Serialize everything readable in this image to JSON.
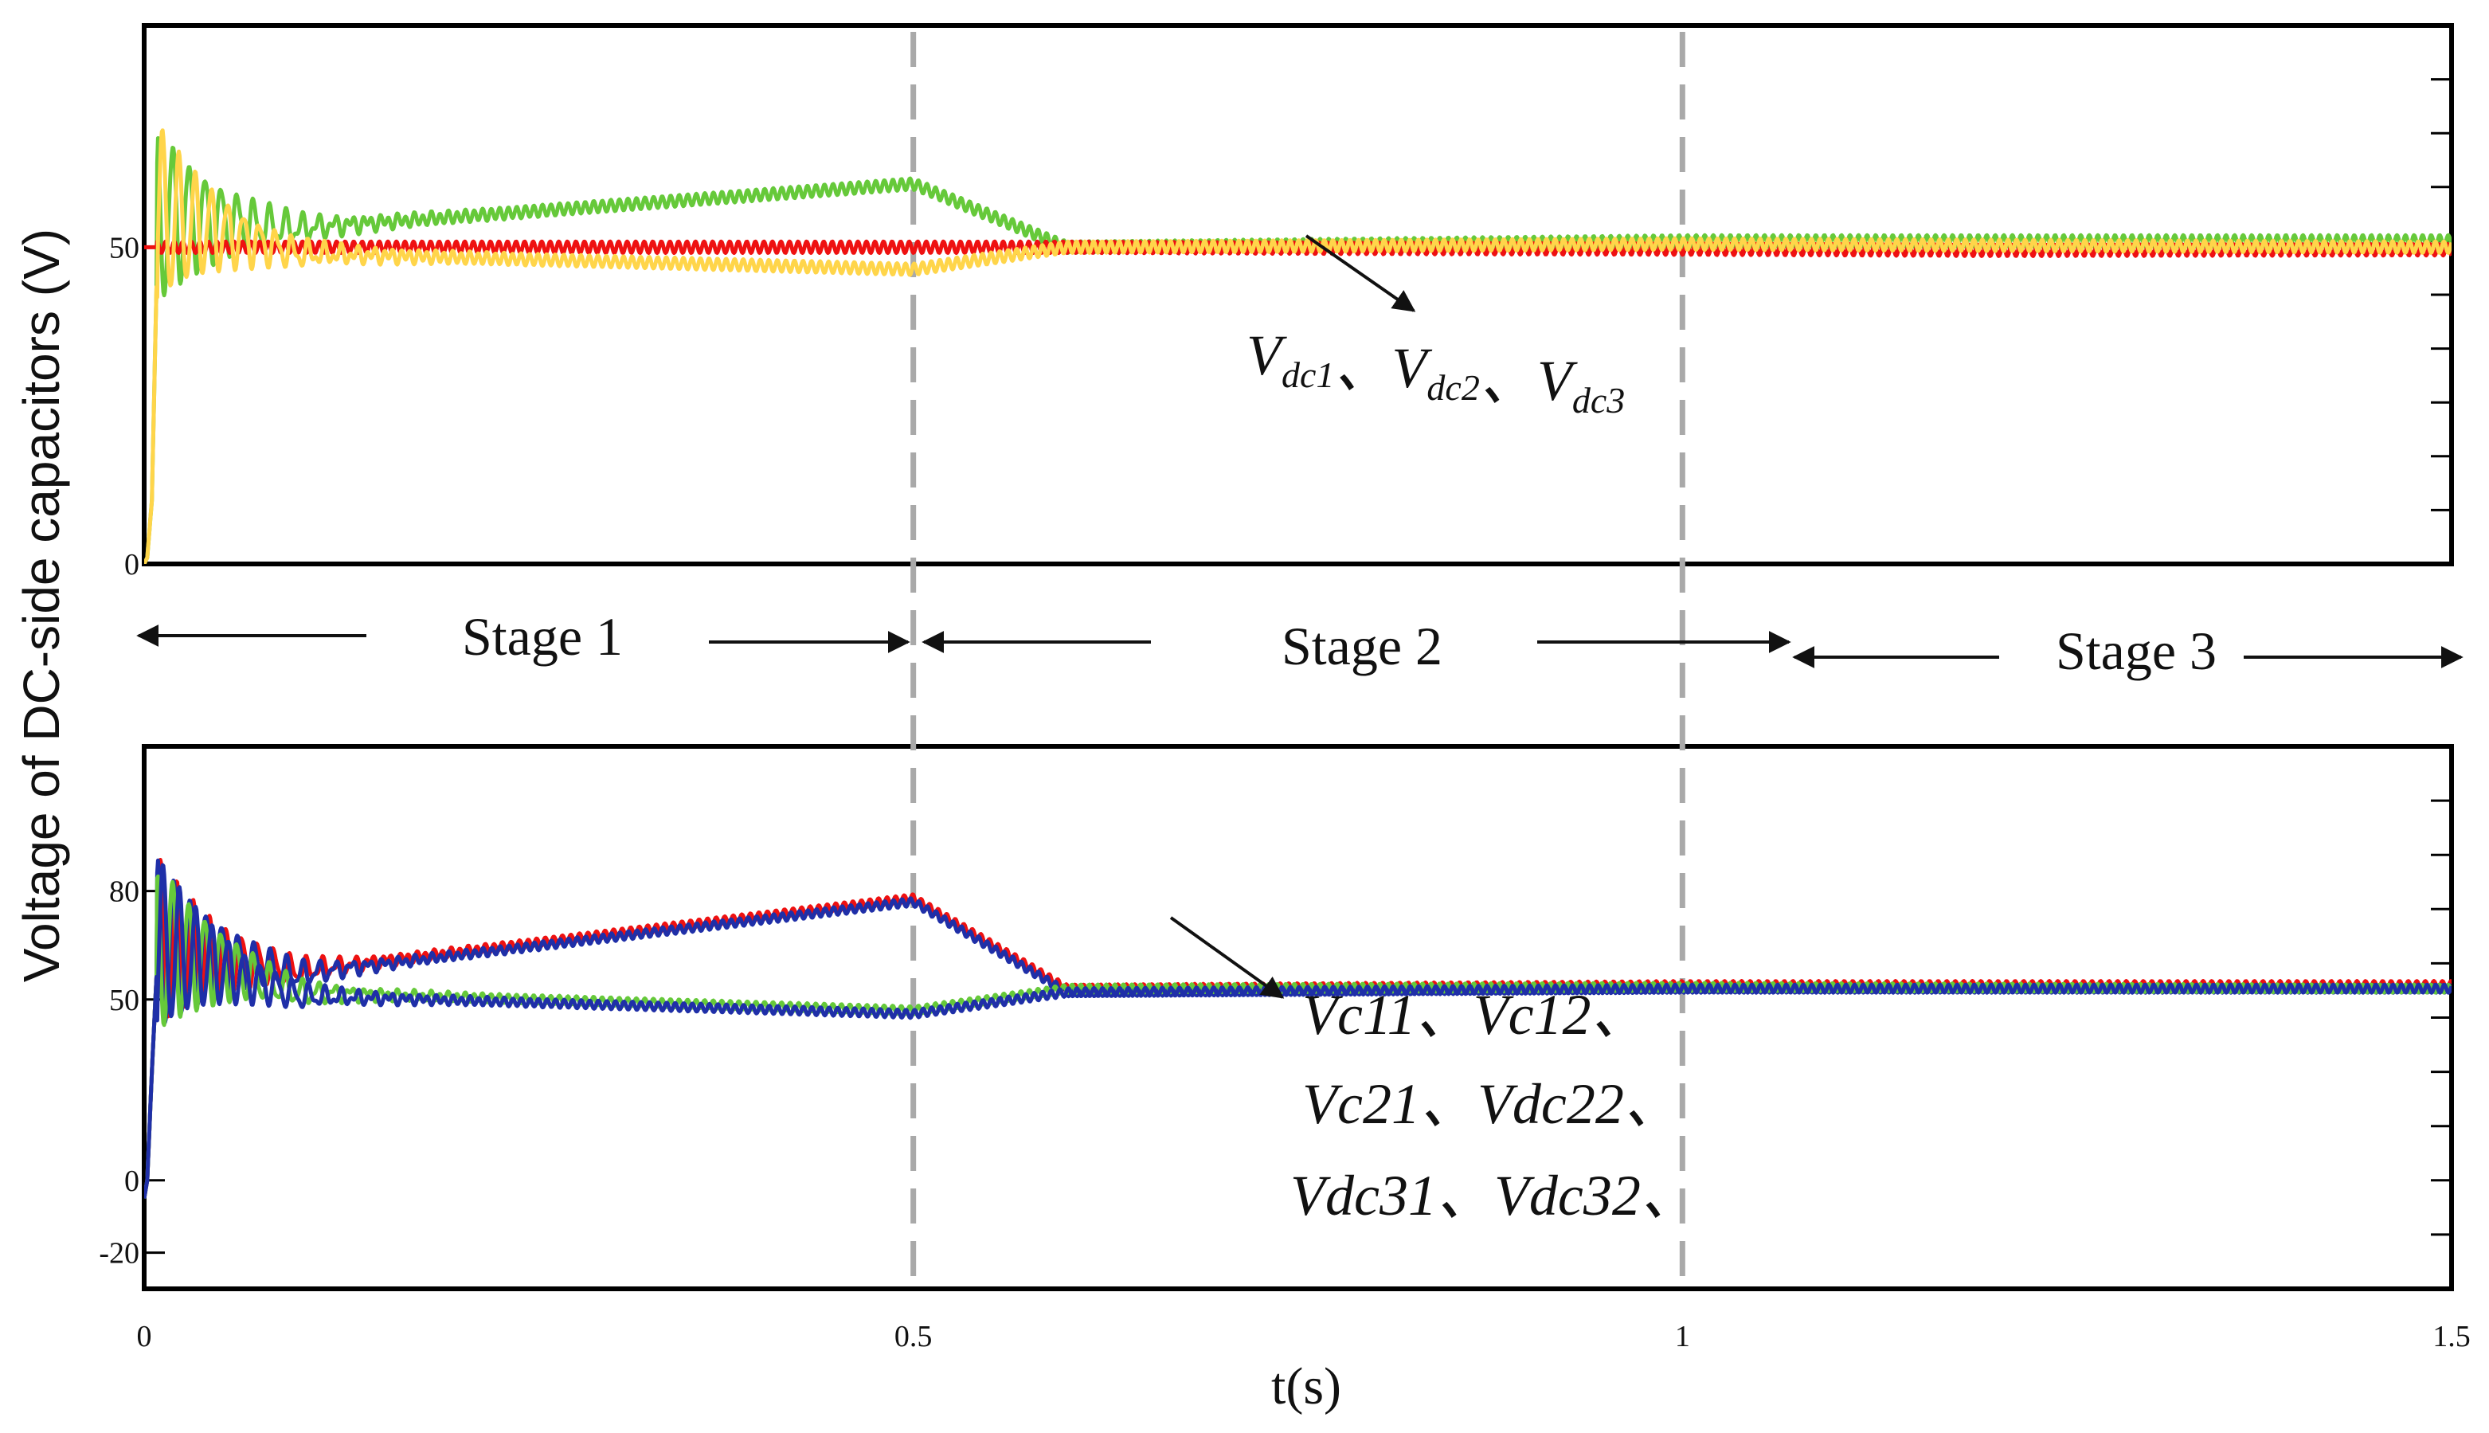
{
  "chart_data": {
    "type": "line",
    "ylabel": "Voltage of DC-side capacitors (V)",
    "xlabel": "t(s)",
    "x_ticks": [
      "0",
      "0.5",
      "1",
      "1.5"
    ],
    "xlim": [
      0,
      1.5
    ],
    "stage_boundaries": [
      0.5,
      1.0
    ],
    "stages": [
      "Stage 1",
      "Stage 2",
      "Stage 3"
    ],
    "colors": {
      "green": "#66c93a",
      "yellow": "#ffd54a",
      "red": "#ee1111",
      "blue": "#1f2fa8",
      "dashed": "#a9a9a9",
      "text": "#111111"
    },
    "panels": [
      {
        "id": "top",
        "ylim": [
          0,
          85
        ],
        "y_ticks": [
          "0",
          "50"
        ],
        "annotation": {
          "lines": [
            [
              {
                "base": "V",
                "sub": "dc1"
              },
              {
                "sep": "、"
              },
              {
                "base": "V",
                "sub": "dc2"
              },
              {
                "sep": "、"
              },
              {
                "base": "V",
                "sub": "dc3"
              }
            ]
          ]
        },
        "series": [
          {
            "name": "Vdc1",
            "color": "green",
            "x": [
              0,
              0.002,
              0.005,
              0.009,
              0.1,
              0.5,
              0.6,
              1.0,
              1.5
            ],
            "y": [
              0,
              1,
              10,
              55,
              53,
              60,
              50,
              51,
              51
            ]
          },
          {
            "name": "Vdc2",
            "color": "red",
            "x": [
              0.6,
              0.8,
              1.0,
              1.2,
              1.5
            ],
            "y": [
              50,
              49.8,
              49.7,
              49.5,
              49.6
            ]
          },
          {
            "name": "Vdc3",
            "color": "yellow",
            "x": [
              0,
              0.002,
              0.005,
              0.009,
              0.1,
              0.5,
              0.6,
              1.0,
              1.5
            ],
            "y": [
              0,
              1,
              10,
              55,
              49,
              46.5,
              50,
              50.5,
              50
            ]
          }
        ]
      },
      {
        "id": "bottom",
        "ylim": [
          -30,
          120
        ],
        "y_ticks": [
          "-20",
          "0",
          "50",
          "80"
        ],
        "annotation": {
          "lines": [
            "Vc11、Vc12、",
            "Vc21、Vdc22、",
            "Vdc31、Vdc32、"
          ]
        },
        "series": [
          {
            "name": "Vc11",
            "color": "red",
            "x": [
              0,
              0.002,
              0.005,
              0.009,
              0.1,
              0.5,
              0.6,
              1.0,
              1.5
            ],
            "y": [
              -5,
              0,
              30,
              65,
              58,
              78,
              53,
              54,
              54
            ]
          },
          {
            "name": "Vc21",
            "color": "blue",
            "x": [
              0,
              0.002,
              0.005,
              0.009,
              0.1,
              0.5,
              0.6,
              1.0,
              1.5
            ],
            "y": [
              -5,
              0,
              30,
              65,
              57,
              77,
              52,
              53,
              53
            ]
          },
          {
            "name": "Vc12",
            "color": "green",
            "x": [
              0,
              0.002,
              0.005,
              0.009,
              0.1,
              0.5,
              0.6,
              1.0,
              1.5
            ],
            "y": [
              -5,
              0,
              30,
              65,
              52,
              47,
              53,
              53.5,
              53
            ]
          },
          {
            "name": "Vdc22",
            "color": "blue",
            "x": [
              0,
              0.002,
              0.005,
              0.009,
              0.1,
              0.5,
              0.6,
              1.0,
              1.5
            ],
            "y": [
              -5,
              0,
              30,
              65,
              51,
              46,
              52,
              53,
              53
            ]
          }
        ]
      }
    ]
  }
}
